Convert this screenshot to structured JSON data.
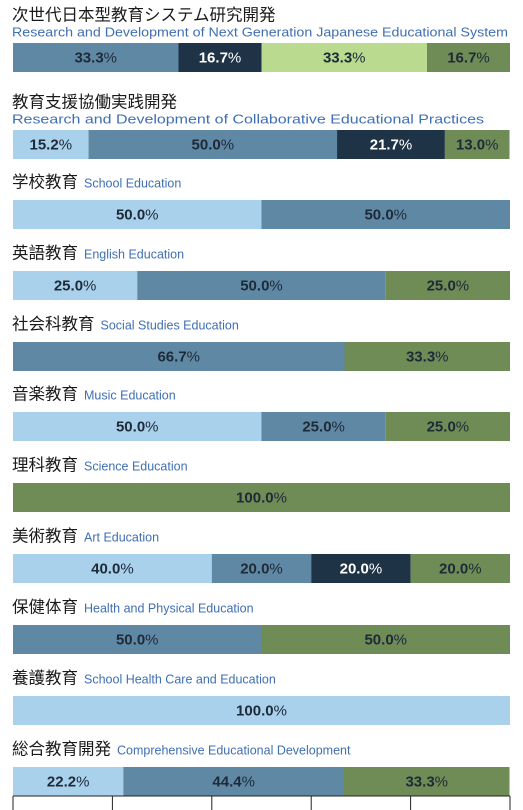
{
  "chart_data": {
    "type": "stacked_bar_rows",
    "xlim": [
      0,
      100
    ],
    "xticks": [
      0,
      20,
      40,
      60,
      80,
      100
    ],
    "rows": [
      {
        "title": "次世代日本型教育システム研究開発",
        "subtitle": "Research and Development of Next Generation Japanese Educational System",
        "values": [
          33.3,
          16.7,
          33.3,
          16.7
        ],
        "value_labels": [
          "33.3%",
          "16.7%",
          "33.3%",
          "16.7%"
        ],
        "colors": [
          "#5f88a5",
          "#1f3347",
          "#b9da8f",
          "#6f8b56"
        ]
      },
      {
        "title": "教育支援協働実践開発",
        "subtitle": "Research and Development of Collaborative Educational Practices",
        "values": [
          15.2,
          50.0,
          21.7,
          13.0
        ],
        "value_labels": [
          "15.2%",
          "50.0%",
          "21.7%",
          "13.0%"
        ],
        "colors": [
          "#a9d1eb",
          "#5f88a5",
          "#1f3347",
          "#6f8b56"
        ]
      },
      {
        "title": "学校教育",
        "subtitle": "School Education",
        "values": [
          50.0,
          50.0
        ],
        "value_labels": [
          "50.0%",
          "50.0%"
        ],
        "colors": [
          "#a9d1eb",
          "#5f88a5"
        ]
      },
      {
        "title": "英語教育",
        "subtitle": "English Education",
        "values": [
          25.0,
          50.0,
          25.0
        ],
        "value_labels": [
          "25.0%",
          "50.0%",
          "25.0%"
        ],
        "colors": [
          "#a9d1eb",
          "#5f88a5",
          "#6f8b56"
        ]
      },
      {
        "title": "社会科教育",
        "subtitle": "Social Studies Education",
        "values": [
          66.7,
          33.3
        ],
        "value_labels": [
          "66.7%",
          "33.3%"
        ],
        "colors": [
          "#5f88a5",
          "#6f8b56"
        ]
      },
      {
        "title": "音楽教育",
        "subtitle": "Music Education",
        "values": [
          50.0,
          25.0,
          25.0
        ],
        "value_labels": [
          "50.0%",
          "25.0%",
          "25.0%"
        ],
        "colors": [
          "#a9d1eb",
          "#5f88a5",
          "#6f8b56"
        ]
      },
      {
        "title": "理科教育",
        "subtitle": "Science Education",
        "values": [
          100.0
        ],
        "value_labels": [
          "100.0%"
        ],
        "colors": [
          "#6f8b56"
        ]
      },
      {
        "title": "美術教育",
        "subtitle": "Art Education",
        "values": [
          40.0,
          20.0,
          20.0,
          20.0
        ],
        "value_labels": [
          "40.0%",
          "20.0%",
          "20.0%",
          "20.0%"
        ],
        "colors": [
          "#a9d1eb",
          "#5f88a5",
          "#1f3347",
          "#6f8b56"
        ]
      },
      {
        "title": "保健体育",
        "subtitle": "Health and Physical Education",
        "values": [
          50.0,
          50.0
        ],
        "value_labels": [
          "50.0%",
          "50.0%"
        ],
        "colors": [
          "#5f88a5",
          "#6f8b56"
        ]
      },
      {
        "title": "養護教育",
        "subtitle": "School Health Care and Education",
        "values": [
          100.0
        ],
        "value_labels": [
          "100.0%"
        ],
        "colors": [
          "#a9d1eb"
        ]
      },
      {
        "title": "総合教育開発",
        "subtitle": "Comprehensive Educational Development",
        "values": [
          22.2,
          44.4,
          33.3
        ],
        "value_labels": [
          "22.2%",
          "44.4%",
          "33.3%"
        ],
        "colors": [
          "#a9d1eb",
          "#5f88a5",
          "#6f8b56"
        ]
      }
    ]
  }
}
